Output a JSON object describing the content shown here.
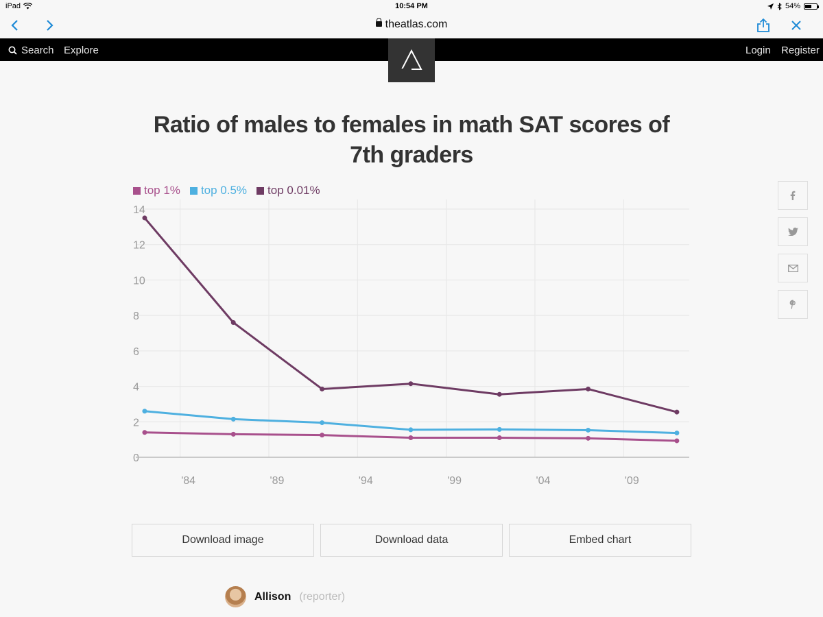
{
  "status": {
    "device": "iPad",
    "time": "10:54 PM",
    "battery": "54%"
  },
  "browser": {
    "url": "theatlas.com"
  },
  "site": {
    "search_label": "Search",
    "explore_label": "Explore",
    "login_label": "Login",
    "register_label": "Register"
  },
  "title": "Ratio of males to females in math SAT scores of 7th graders",
  "colors": {
    "top1": "#a8508c",
    "top05": "#4eb0e0",
    "top001": "#6e3b63"
  },
  "chart_data": {
    "type": "line",
    "title": "Ratio of males to females in math SAT scores of 7th graders",
    "x": [
      1982,
      1987,
      1992,
      1997,
      2002,
      2007,
      2012
    ],
    "x_ticks": [
      1984,
      1989,
      1994,
      1999,
      2004,
      2009
    ],
    "x_tick_labels": [
      "'84",
      "'89",
      "'94",
      "'99",
      "'04",
      "'09"
    ],
    "xlim": [
      1981.5,
      2012.7
    ],
    "ylim": [
      0,
      14
    ],
    "y_ticks": [
      0,
      2,
      4,
      6,
      8,
      10,
      12,
      14
    ],
    "series": [
      {
        "name": "top 1%",
        "color": "#a8508c",
        "values": [
          1.4,
          1.3,
          1.25,
          1.1,
          1.1,
          1.07,
          0.93
        ]
      },
      {
        "name": "top 0.5%",
        "color": "#4eb0e0",
        "values": [
          2.6,
          2.15,
          1.95,
          1.55,
          1.57,
          1.53,
          1.37
        ]
      },
      {
        "name": "top 0.01%",
        "color": "#6e3b63",
        "values": [
          13.5,
          7.6,
          3.85,
          4.15,
          3.55,
          3.85,
          2.55
        ]
      }
    ]
  },
  "buttons": {
    "download_image": "Download image",
    "download_data": "Download data",
    "embed_chart": "Embed chart"
  },
  "author": {
    "name": "Allison",
    "role": "(reporter)"
  }
}
